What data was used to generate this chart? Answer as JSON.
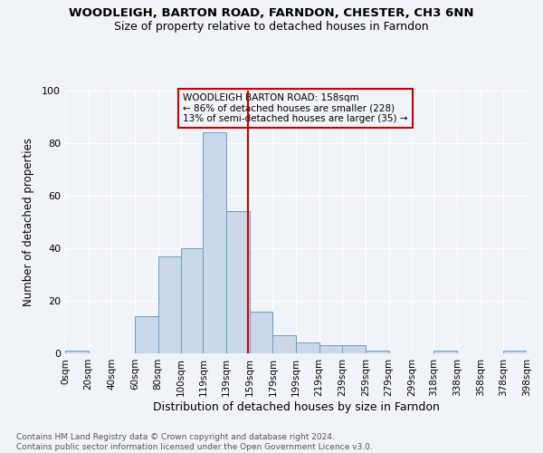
{
  "title1": "WOODLEIGH, BARTON ROAD, FARNDON, CHESTER, CH3 6NN",
  "title2": "Size of property relative to detached houses in Farndon",
  "xlabel": "Distribution of detached houses by size in Farndon",
  "ylabel": "Number of detached properties",
  "footnote1": "Contains HM Land Registry data © Crown copyright and database right 2024.",
  "footnote2": "Contains public sector information licensed under the Open Government Licence v3.0.",
  "annotation_line1": "WOODLEIGH BARTON ROAD: 158sqm",
  "annotation_line2": "← 86% of detached houses are smaller (228)",
  "annotation_line3": "13% of semi-detached houses are larger (35) →",
  "property_line_x": 158,
  "bar_edges": [
    0,
    20,
    40,
    60,
    80,
    100,
    119,
    139,
    159,
    179,
    199,
    219,
    239,
    259,
    279,
    299,
    318,
    338,
    358,
    378,
    398
  ],
  "bar_heights": [
    1,
    0,
    0,
    14,
    37,
    40,
    84,
    54,
    16,
    7,
    4,
    3,
    3,
    1,
    0,
    0,
    1,
    0,
    0,
    1
  ],
  "bar_color": "#c8d8e8",
  "bar_edge_color": "#6a9ec0",
  "property_line_color": "#cc0000",
  "annotation_box_edge_color": "#cc0000",
  "background_color": "#f0f4f8",
  "grid_color": "#ffffff",
  "ylim": [
    0,
    100
  ],
  "tick_labels": [
    "0sqm",
    "20sqm",
    "40sqm",
    "60sqm",
    "80sqm",
    "100sqm",
    "119sqm",
    "139sqm",
    "159sqm",
    "179sqm",
    "199sqm",
    "219sqm",
    "239sqm",
    "259sqm",
    "279sqm",
    "299sqm",
    "318sqm",
    "338sqm",
    "358sqm",
    "378sqm",
    "398sqm"
  ]
}
